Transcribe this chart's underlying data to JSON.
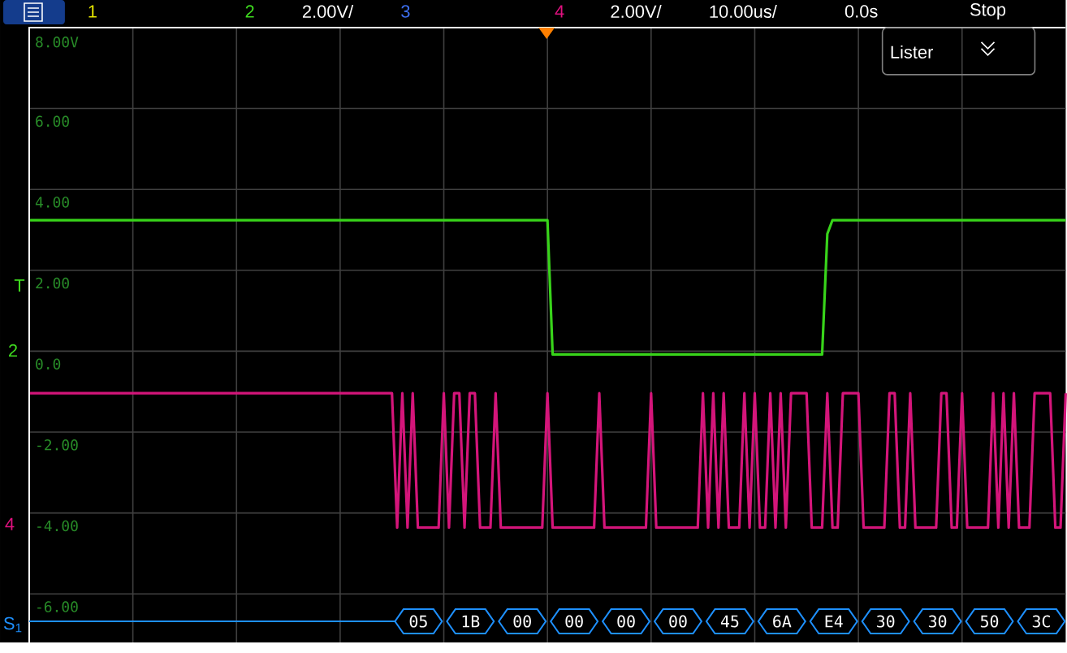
{
  "chart_data": {
    "type": "line",
    "categories": [
      null,
      null,
      null,
      null,
      null,
      null,
      null,
      null,
      null,
      null,
      null,
      null,
      null,
      null,
      null,
      null,
      null,
      null,
      null,
      null,
      null,
      null,
      null,
      null,
      null,
      null,
      null,
      null,
      null,
      null,
      null,
      null,
      null,
      null,
      null,
      null,
      null,
      null,
      null,
      null,
      null,
      null,
      null,
      null,
      null,
      null,
      null,
      null,
      null,
      null,
      null,
      null,
      null,
      null,
      null,
      null,
      null,
      null,
      null,
      null,
      null,
      null,
      null,
      null,
      null,
      null,
      null,
      null,
      null,
      null,
      null,
      null,
      null,
      null,
      null,
      null,
      null,
      null,
      null,
      null,
      null,
      null,
      null,
      null,
      null,
      null,
      null,
      null,
      null,
      null,
      null,
      null,
      null,
      null,
      null,
      null,
      null,
      null,
      null,
      null,
      null,
      null,
      null,
      null,
      null,
      null,
      null,
      null,
      null,
      null,
      null,
      null,
      null,
      null,
      null,
      null,
      null,
      null,
      null,
      null,
      null,
      null,
      null,
      null,
      null,
      null,
      null,
      null,
      null,
      null,
      null,
      null,
      null,
      null,
      null,
      null,
      null,
      null,
      null,
      null,
      null,
      null,
      null,
      null,
      null,
      null,
      null,
      null,
      null,
      null,
      null,
      null,
      null,
      null,
      null,
      null,
      null,
      null,
      null,
      null,
      null,
      null,
      null,
      null,
      null,
      null,
      null,
      null,
      null,
      null,
      null,
      null,
      null,
      null,
      null,
      null,
      null,
      null,
      null,
      null,
      null,
      null,
      null,
      null,
      null,
      null,
      null,
      null,
      null,
      null,
      null,
      null,
      null,
      null,
      null,
      null,
      null,
      null,
      null,
      null,
      null
    ],
    "ylim": [
      -7.2,
      8
    ],
    "yticks": [
      {
        "value": 8,
        "label": "8.00V"
      },
      {
        "value": 6,
        "label": "6.00"
      },
      {
        "value": 4,
        "label": "4.00"
      },
      {
        "value": 2,
        "label": "2.00"
      },
      {
        "value": 0,
        "label": "0.0"
      },
      {
        "value": -2,
        "label": "-2.00"
      },
      {
        "value": -4,
        "label": "-4.00"
      },
      {
        "value": -6,
        "label": "-6.00"
      }
    ],
    "tick_labels": "y",
    "grid": true,
    "marker": "none",
    "line_style": "solid",
    "series": [
      {
        "color": "#38d41a",
        "values": [
          3.24,
          3.24,
          3.24,
          3.24,
          3.24,
          3.24,
          3.24,
          3.24,
          3.24,
          3.24,
          3.24,
          3.24,
          3.24,
          3.24,
          3.24,
          3.24,
          3.24,
          3.24,
          3.24,
          3.24,
          3.24,
          3.24,
          3.24,
          3.24,
          3.24,
          3.24,
          3.24,
          3.24,
          3.24,
          3.24,
          3.24,
          3.24,
          3.24,
          3.24,
          3.24,
          3.24,
          3.24,
          3.24,
          3.24,
          3.24,
          3.24,
          3.24,
          3.24,
          3.24,
          3.24,
          3.24,
          3.24,
          3.24,
          3.24,
          3.24,
          3.24,
          3.24,
          3.24,
          3.24,
          3.24,
          3.24,
          3.24,
          3.24,
          3.24,
          3.24,
          3.24,
          3.24,
          3.24,
          3.24,
          3.24,
          3.24,
          3.24,
          3.24,
          3.24,
          3.24,
          3.24,
          3.24,
          3.24,
          3.24,
          3.24,
          3.24,
          3.24,
          3.24,
          3.24,
          3.24,
          3.24,
          3.24,
          3.24,
          3.24,
          3.24,
          3.24,
          3.24,
          3.24,
          3.24,
          3.24,
          3.24,
          3.24,
          3.24,
          3.24,
          3.24,
          3.24,
          3.24,
          3.24,
          3.24,
          3.24,
          3.24,
          -0.08,
          -0.08,
          -0.08,
          -0.08,
          -0.08,
          -0.08,
          -0.08,
          -0.08,
          -0.08,
          -0.08,
          -0.08,
          -0.08,
          -0.08,
          -0.08,
          -0.08,
          -0.08,
          -0.08,
          -0.08,
          -0.08,
          -0.08,
          -0.08,
          -0.08,
          -0.08,
          -0.08,
          -0.08,
          -0.08,
          -0.08,
          -0.08,
          -0.08,
          -0.08,
          -0.08,
          -0.08,
          -0.08,
          -0.08,
          -0.08,
          -0.08,
          -0.08,
          -0.08,
          -0.08,
          -0.08,
          -0.08,
          -0.08,
          -0.08,
          -0.08,
          -0.08,
          -0.08,
          -0.08,
          -0.08,
          -0.08,
          -0.08,
          -0.08,
          -0.08,
          -0.08,
          2.9,
          3.24,
          3.24,
          3.24,
          3.24,
          3.24,
          3.24,
          3.24,
          3.24,
          3.24,
          3.24,
          3.24,
          3.24,
          3.24,
          3.24,
          3.24,
          3.24,
          3.24,
          3.24,
          3.24,
          3.24,
          3.24,
          3.24,
          3.24,
          3.24,
          3.24,
          3.24,
          3.24,
          3.24,
          3.24,
          3.24,
          3.24,
          3.24,
          3.24,
          3.24,
          3.24,
          3.24,
          3.24,
          3.24,
          3.24,
          3.24,
          3.24,
          3.24,
          3.24,
          3.24,
          3.24,
          3.24
        ]
      },
      {
        "color": "#d4157a",
        "values": [
          -1.04,
          -1.04,
          -1.04,
          -1.04,
          -1.04,
          -1.04,
          -1.04,
          -1.04,
          -1.04,
          -1.04,
          -1.04,
          -1.04,
          -1.04,
          -1.04,
          -1.04,
          -1.04,
          -1.04,
          -1.04,
          -1.04,
          -1.04,
          -1.04,
          -1.04,
          -1.04,
          -1.04,
          -1.04,
          -1.04,
          -1.04,
          -1.04,
          -1.04,
          -1.04,
          -1.04,
          -1.04,
          -1.04,
          -1.04,
          -1.04,
          -1.04,
          -1.04,
          -1.04,
          -1.04,
          -1.04,
          -1.04,
          -1.04,
          -1.04,
          -1.04,
          -1.04,
          -1.04,
          -1.04,
          -1.04,
          -1.04,
          -1.04,
          -1.04,
          -1.04,
          -1.04,
          -1.04,
          -1.04,
          -1.04,
          -1.04,
          -1.04,
          -1.04,
          -1.04,
          -1.04,
          -1.04,
          -1.04,
          -1.04,
          -1.04,
          -1.04,
          -1.04,
          -1.04,
          -1.04,
          -1.04,
          -1.04,
          -4.36,
          -1.04,
          -4.36,
          -1.04,
          -4.36,
          -4.36,
          -4.36,
          -4.36,
          -4.36,
          -1.04,
          -4.36,
          -1.04,
          -1.04,
          -4.36,
          -1.04,
          -1.04,
          -4.36,
          -4.36,
          -4.36,
          -1.04,
          -4.36,
          -4.36,
          -4.36,
          -4.36,
          -4.36,
          -4.36,
          -4.36,
          -4.36,
          -4.36,
          -1.04,
          -4.36,
          -4.36,
          -4.36,
          -4.36,
          -4.36,
          -4.36,
          -4.36,
          -4.36,
          -4.36,
          -1.04,
          -4.36,
          -4.36,
          -4.36,
          -4.36,
          -4.36,
          -4.36,
          -4.36,
          -4.36,
          -4.36,
          -1.04,
          -4.36,
          -4.36,
          -4.36,
          -4.36,
          -4.36,
          -4.36,
          -4.36,
          -4.36,
          -4.36,
          -1.04,
          -4.36,
          -1.04,
          -4.36,
          -1.04,
          -4.36,
          -4.36,
          -4.36,
          -1.04,
          -4.36,
          -1.04,
          -4.36,
          -4.36,
          -1.04,
          -4.36,
          -1.04,
          -4.36,
          -1.04,
          -1.04,
          -1.04,
          -1.04,
          -4.36,
          -4.36,
          -4.36,
          -1.04,
          -4.36,
          -4.36,
          -1.04,
          -1.04,
          -1.04,
          -1.04,
          -4.36,
          -4.36,
          -4.36,
          -4.36,
          -4.36,
          -1.04,
          -1.04,
          -4.36,
          -4.36,
          -1.04,
          -4.36,
          -4.36,
          -4.36,
          -4.36,
          -4.36,
          -1.04,
          -1.04,
          -4.36,
          -4.36,
          -1.04,
          -4.36,
          -4.36,
          -4.36,
          -4.36,
          -4.36,
          -1.04,
          -4.36,
          -1.04,
          -4.36,
          -1.04,
          -4.36,
          -4.36,
          -4.36,
          -1.04,
          -1.04,
          -1.04,
          -1.04,
          -4.36,
          -4.36,
          -1.04
        ]
      }
    ],
    "annotations": [
      "1",
      "2",
      "2.00V/",
      "3",
      "4",
      "2.00V/",
      "10.00us/",
      "0.0s",
      "Stop",
      "Lister",
      "T",
      "2",
      "4",
      "S$_{1}$",
      "05",
      "1B",
      "00",
      "00",
      "00",
      "00",
      "45",
      "6A",
      "E4",
      "30",
      "30",
      "50",
      "3C"
    ]
  }
}
